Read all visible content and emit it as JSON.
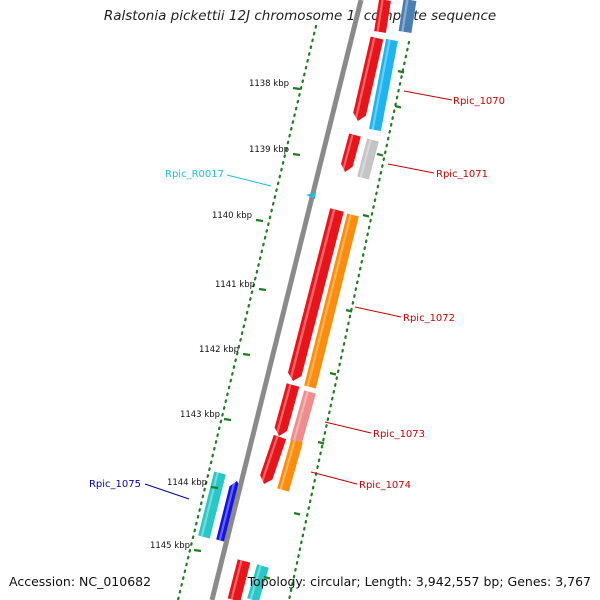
{
  "title": "Ralstonia pickettii 12J chromosome 1, complete sequence",
  "footer": {
    "accession": "Accession: NC_010682",
    "topology": "Topology: circular; Length: 3,942,557 bp; Genes: 3,767"
  },
  "colors": {
    "backbone": "#8a8a8a",
    "tick": "#1f7f1f",
    "red": "#e8141a",
    "blue_cds": "#1eb4f0",
    "gray_cds": "#c4c4c4",
    "orange_cds": "#ff8c0a",
    "pink_cds": "#f08c8c",
    "teal_cds": "#28c8c8",
    "navy_cds": "#1414e6",
    "rna": "#2ab8e0",
    "label_red": "#cc0000",
    "label_cyan": "#22bcdc",
    "label_navy": "#0000aa"
  },
  "ruler": {
    "unit": "kbp",
    "ticks": [
      "1138",
      "1139",
      "1140",
      "1141",
      "1142",
      "1143",
      "1144",
      "1145"
    ]
  },
  "genes": [
    {
      "name": "Rpic_1070",
      "color": "label_red"
    },
    {
      "name": "Rpic_1071",
      "color": "label_red"
    },
    {
      "name": "Rpic_R0017",
      "color": "label_cyan"
    },
    {
      "name": "Rpic_1072",
      "color": "label_red"
    },
    {
      "name": "Rpic_1073",
      "color": "label_red"
    },
    {
      "name": "Rpic_1074",
      "color": "label_red"
    },
    {
      "name": "Rpic_1075",
      "color": "label_navy"
    }
  ]
}
